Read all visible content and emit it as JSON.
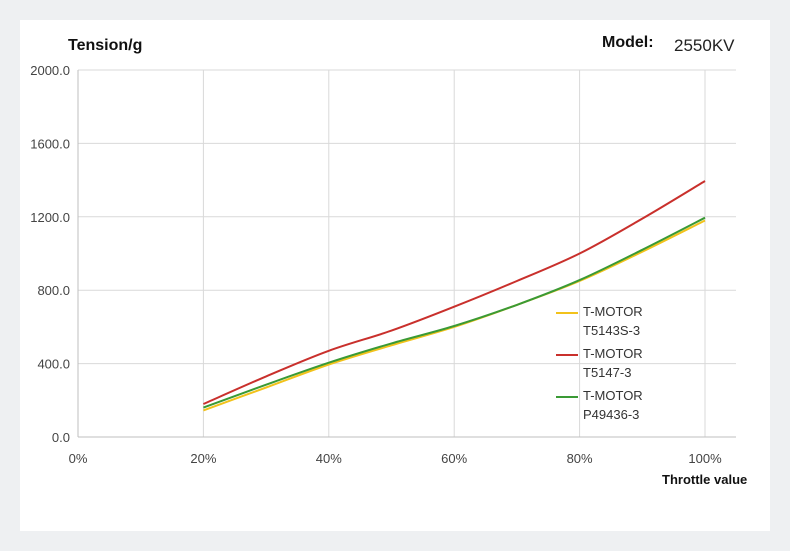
{
  "model": {
    "label": "Model:",
    "value": "2550KV"
  },
  "chart_data": {
    "type": "line",
    "title": "",
    "ylabel": "Tension/g",
    "xlabel": "Throttle value",
    "x": [
      0.2,
      0.3,
      0.4,
      0.5,
      0.6,
      0.7,
      0.8,
      0.9,
      1.0
    ],
    "xlim": [
      0,
      1.0
    ],
    "ylim": [
      0,
      2000
    ],
    "xticks": [
      "0%",
      "20%",
      "40%",
      "60%",
      "80%",
      "100%"
    ],
    "yticks": [
      "0.0",
      "400.0",
      "800.0",
      "1200.0",
      "1600.0",
      "2000.0"
    ],
    "grid": true,
    "legend_position": "right",
    "series": [
      {
        "name": "T-MOTOR T5143S-3",
        "legend_lines": [
          "T-MOTOR",
          "T5143S-3"
        ],
        "color": "#f2c21b",
        "values": [
          145,
          270,
          395,
          500,
          600,
          720,
          850,
          1010,
          1180
        ]
      },
      {
        "name": "T-MOTOR T5147-3",
        "legend_lines": [
          "T-MOTOR",
          "T5147-3"
        ],
        "color": "#c9302c",
        "values": [
          180,
          330,
          470,
          580,
          710,
          850,
          1000,
          1190,
          1395
        ]
      },
      {
        "name": "T-MOTOR P49436-3",
        "legend_lines": [
          "T-MOTOR",
          "P49436-3"
        ],
        "color": "#3a9a35",
        "values": [
          160,
          285,
          405,
          510,
          605,
          720,
          855,
          1020,
          1195
        ]
      }
    ]
  }
}
